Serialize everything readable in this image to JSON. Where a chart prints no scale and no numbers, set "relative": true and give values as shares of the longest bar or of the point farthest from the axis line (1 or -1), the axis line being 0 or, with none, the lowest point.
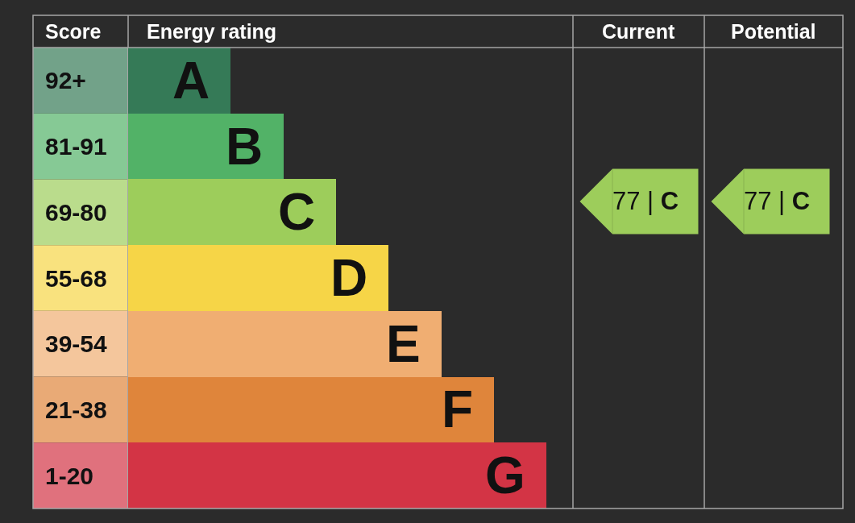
{
  "chart_data": {
    "type": "bar",
    "orientation": "horizontal",
    "relative": true,
    "xlabel": "Energy rating",
    "ylabel": "Score",
    "categories": [
      "92+",
      "81-91",
      "69-80",
      "55-68",
      "39-54",
      "21-38",
      "1-20"
    ],
    "values": [
      0.245,
      0.372,
      0.497,
      0.622,
      0.75,
      0.875,
      1
    ],
    "colors": [
      "#357a57",
      "#52b267",
      "#9dcd5b",
      "#f6d547",
      "#f0ae72",
      "#df853b",
      "#d33445"
    ],
    "annotations": [
      "Current",
      "Potential",
      "77 | C",
      "77 | C",
      {
        "text": "A",
        "x": 0.245,
        "y": "92+"
      },
      {
        "text": "B",
        "x": 0.372,
        "y": "81-91"
      },
      {
        "text": "C",
        "x": 0.497,
        "y": "69-80"
      },
      {
        "text": "D",
        "x": 0.622,
        "y": "55-68"
      },
      {
        "text": "E",
        "x": 0.75,
        "y": "39-54"
      },
      {
        "text": "F",
        "x": 0.875,
        "y": "21-38"
      },
      {
        "text": "G",
        "x": 1,
        "y": "1-20"
      }
    ]
  }
}
